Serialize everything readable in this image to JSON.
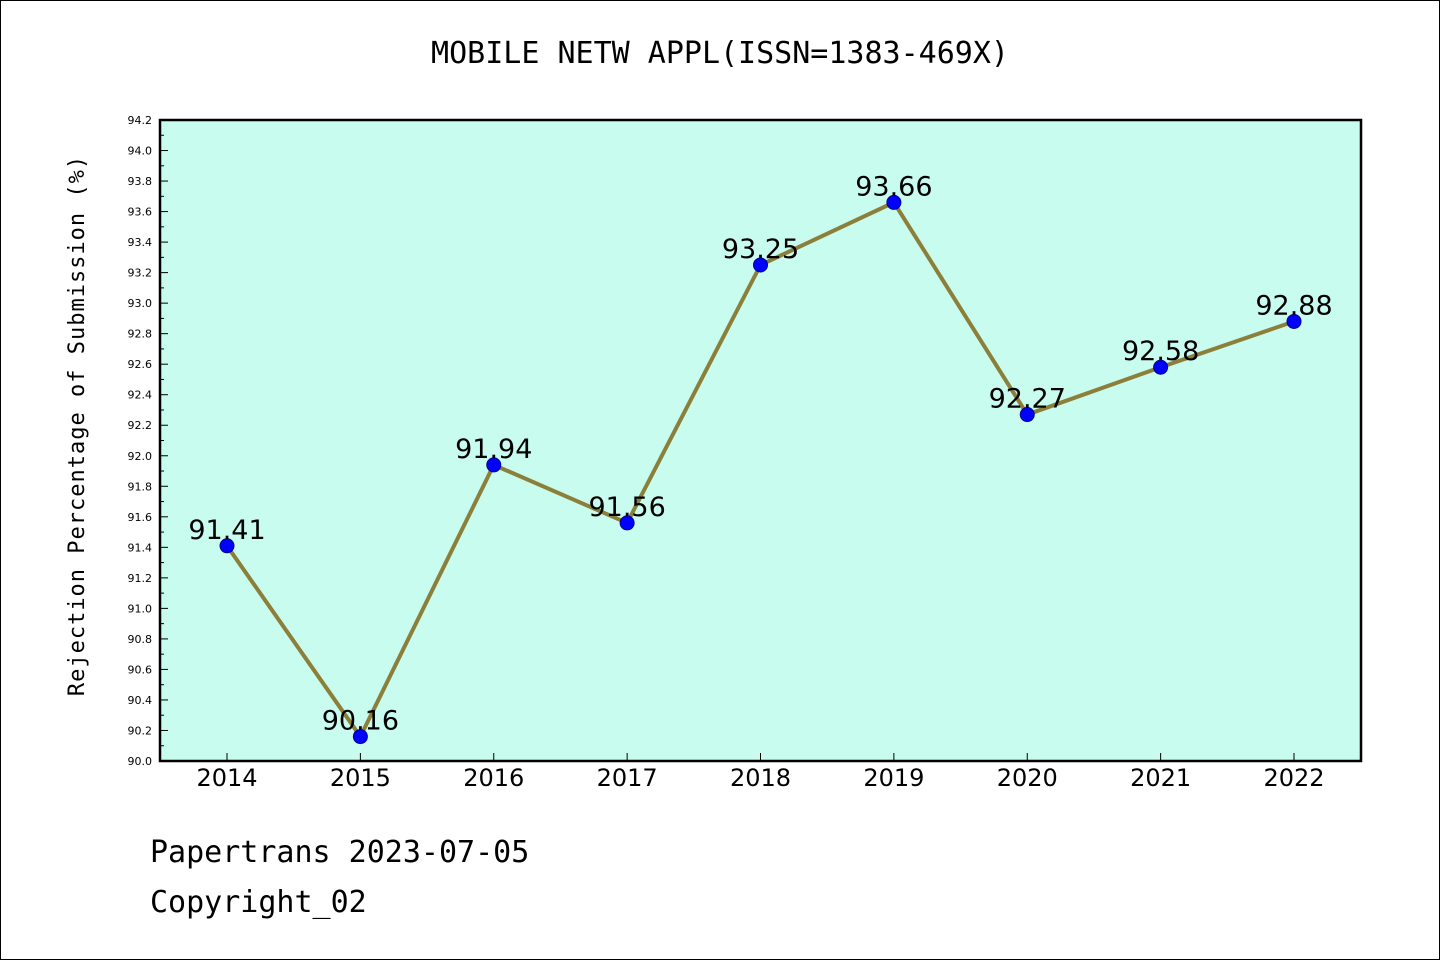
{
  "chart_data": {
    "type": "line",
    "title": "MOBILE NETW APPL(ISSN=1383-469X)",
    "xlabel": "",
    "ylabel": "Rejection Percentage of Submission (%)",
    "categories": [
      "2014",
      "2015",
      "2016",
      "2017",
      "2018",
      "2019",
      "2020",
      "2021",
      "2022"
    ],
    "series": [
      {
        "values": [
          91.41,
          90.16,
          91.94,
          91.56,
          93.25,
          93.66,
          92.27,
          92.58,
          92.88
        ],
        "labels": [
          "91.41",
          "90.16",
          "91.94",
          "91.56",
          "93.25",
          "93.66",
          "92.27",
          "92.58",
          "92.88"
        ]
      }
    ],
    "ylim": [
      90.0,
      94.2
    ],
    "yticks": [
      "90.0",
      "90.2",
      "90.4",
      "90.6",
      "90.8",
      "91.0",
      "91.2",
      "91.4",
      "91.6",
      "91.8",
      "92.0",
      "92.2",
      "92.4",
      "92.6",
      "92.8",
      "93.0",
      "93.2",
      "93.4",
      "93.6",
      "93.8",
      "94.0",
      "94.2"
    ],
    "grid": false,
    "legend": "none",
    "colors": {
      "plot_background": "#c8fcee",
      "line": "#8c7f3a",
      "marker": "#0000ff",
      "marker_edge": "#00008b"
    }
  },
  "footer": {
    "line1": "Papertrans 2023-07-05",
    "line2": "Copyright_02"
  }
}
